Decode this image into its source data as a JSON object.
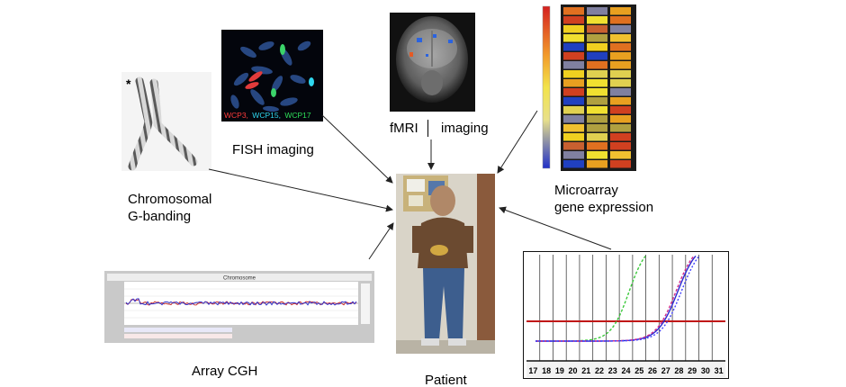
{
  "diagram": {
    "center": {
      "label": "Patient"
    },
    "panels": [
      {
        "id": "chromosomal",
        "label_lines": [
          "Chromosomal",
          "G-banding"
        ],
        "marker": "*"
      },
      {
        "id": "fish",
        "label": "FISH imaging",
        "probes": [
          {
            "text": "WCP3,",
            "color": "#ff3b3b"
          },
          {
            "text": "WCP15,",
            "color": "#2fd8f0"
          },
          {
            "text": "WCP17",
            "color": "#2ee05a"
          }
        ]
      },
      {
        "id": "fmri",
        "label_a": "fMRI",
        "label_b": "imaging"
      },
      {
        "id": "microarray",
        "label_lines": [
          "Microarray",
          "gene expression"
        ]
      },
      {
        "id": "array-cgh",
        "label": "Array CGH",
        "header_text": "Chromosome"
      },
      {
        "id": "qpcr",
        "x_ticks": [
          "17",
          "18",
          "19",
          "20",
          "21",
          "22",
          "23",
          "24",
          "25",
          "26",
          "27",
          "28",
          "29",
          "30",
          "31"
        ]
      }
    ]
  }
}
